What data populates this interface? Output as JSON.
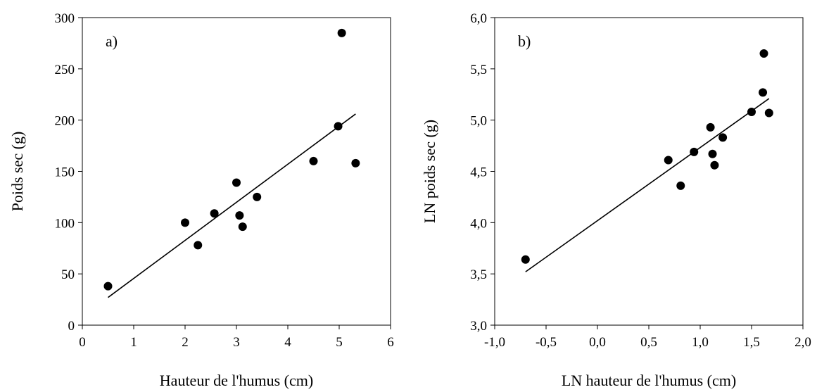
{
  "chart_data": [
    {
      "type": "scatter",
      "panel_label": "a)",
      "xlabel": "Hauteur de l'humus (cm)",
      "ylabel": "Poids sec (g)",
      "xlim": [
        0,
        6
      ],
      "ylim": [
        0,
        300
      ],
      "x_ticks": [
        0,
        1,
        2,
        3,
        4,
        5,
        6
      ],
      "y_ticks": [
        0,
        50,
        100,
        150,
        200,
        250,
        300
      ],
      "x_tick_labels": [
        "0",
        "1",
        "2",
        "3",
        "4",
        "5",
        "6"
      ],
      "y_tick_labels": [
        "0",
        "50",
        "100",
        "150",
        "200",
        "250",
        "300"
      ],
      "grid": false,
      "points": [
        {
          "x": 0.5,
          "y": 38
        },
        {
          "x": 2.0,
          "y": 100
        },
        {
          "x": 2.25,
          "y": 78
        },
        {
          "x": 2.57,
          "y": 109
        },
        {
          "x": 3.0,
          "y": 139
        },
        {
          "x": 3.06,
          "y": 107
        },
        {
          "x": 3.12,
          "y": 96
        },
        {
          "x": 3.4,
          "y": 125
        },
        {
          "x": 4.5,
          "y": 160
        },
        {
          "x": 4.98,
          "y": 194
        },
        {
          "x": 5.05,
          "y": 285
        },
        {
          "x": 5.32,
          "y": 158
        }
      ],
      "regression_line": {
        "x": [
          0.5,
          5.32
        ],
        "y": [
          27,
          206
        ]
      }
    },
    {
      "type": "scatter",
      "panel_label": "b)",
      "xlabel": "LN hauteur de l'humus (cm)",
      "ylabel": "LN poids sec (g)",
      "xlim": [
        -1.0,
        2.0
      ],
      "ylim": [
        3.0,
        6.0
      ],
      "x_ticks": [
        -1.0,
        -0.5,
        0.0,
        0.5,
        1.0,
        1.5,
        2.0
      ],
      "y_ticks": [
        3.0,
        3.5,
        4.0,
        4.5,
        5.0,
        5.5,
        6.0
      ],
      "x_tick_labels": [
        "-1,0",
        "-0,5",
        "0,0",
        "0,5",
        "1,0",
        "1,5",
        "2,0"
      ],
      "y_tick_labels": [
        "3,0",
        "3,5",
        "4,0",
        "4,5",
        "5,0",
        "5,5",
        "6,0"
      ],
      "grid": false,
      "points": [
        {
          "x": -0.7,
          "y": 3.64
        },
        {
          "x": 0.69,
          "y": 4.61
        },
        {
          "x": 0.81,
          "y": 4.36
        },
        {
          "x": 0.94,
          "y": 4.69
        },
        {
          "x": 1.1,
          "y": 4.93
        },
        {
          "x": 1.12,
          "y": 4.67
        },
        {
          "x": 1.14,
          "y": 4.56
        },
        {
          "x": 1.22,
          "y": 4.83
        },
        {
          "x": 1.5,
          "y": 5.08
        },
        {
          "x": 1.61,
          "y": 5.27
        },
        {
          "x": 1.62,
          "y": 5.65
        },
        {
          "x": 1.67,
          "y": 5.07
        }
      ],
      "regression_line": {
        "x": [
          -0.7,
          1.67
        ],
        "y": [
          3.52,
          5.21
        ]
      }
    }
  ]
}
